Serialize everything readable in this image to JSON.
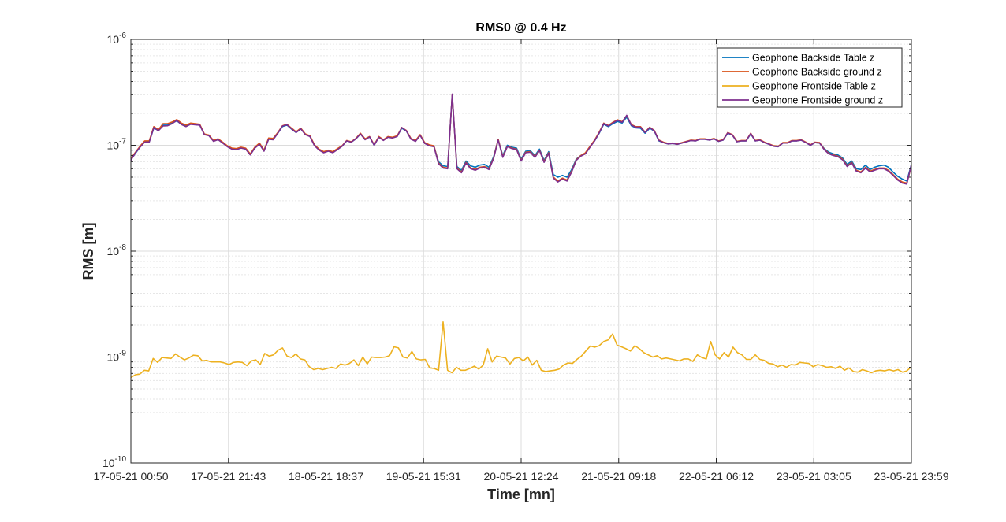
{
  "chart_data": {
    "type": "line",
    "title": "RMS0 @ 0.4 Hz",
    "xlabel": "Time [mn]",
    "ylabel": "RMS [m]",
    "yscale": "log",
    "ylim": [
      1e-10,
      1e-06
    ],
    "y_ticks": [
      {
        "value": 1e-10,
        "base": "10",
        "exp": "-10"
      },
      {
        "value": 1e-09,
        "base": "10",
        "exp": "-9"
      },
      {
        "value": 1e-08,
        "base": "10",
        "exp": "-8"
      },
      {
        "value": 1e-07,
        "base": "10",
        "exp": "-7"
      },
      {
        "value": 1e-06,
        "base": "10",
        "exp": "-6"
      }
    ],
    "x_ticks": [
      "17-05-21 00:50",
      "17-05-21 21:43",
      "18-05-21 18:37",
      "19-05-21 15:31",
      "20-05-21 12:24",
      "21-05-21 09:18",
      "22-05-21 06:12",
      "23-05-21 03:05",
      "23-05-21 23:59"
    ],
    "grid": true,
    "minor_grid": true,
    "legend_position": "top-right",
    "series": [
      {
        "name": "Geophone Backside Table z",
        "color": "#0072BD",
        "values": [
          7.3e-08,
          8.4e-08,
          9.6e-08,
          1.08e-07,
          1.08e-07,
          1.45e-07,
          1.38e-07,
          1.55e-07,
          1.55e-07,
          1.62e-07,
          1.7e-07,
          1.58e-07,
          1.52e-07,
          1.6e-07,
          1.57e-07,
          1.55e-07,
          1.27e-07,
          1.24e-07,
          1.1e-07,
          1.14e-07,
          1.06e-07,
          9.8e-08,
          9.3e-08,
          9.2e-08,
          9.5e-08,
          9.3e-08,
          8.2e-08,
          9.5e-08,
          1.03e-07,
          8.9e-08,
          1.15e-07,
          1.14e-07,
          1.3e-07,
          1.5e-07,
          1.55e-07,
          1.42e-07,
          1.32e-07,
          1.43e-07,
          1.27e-07,
          1.22e-07,
          1e-07,
          9.1e-08,
          8.6e-08,
          8.9e-08,
          8.6e-08,
          9.2e-08,
          9.8e-08,
          1.1e-07,
          1.07e-07,
          1.15e-07,
          1.28e-07,
          1.14e-07,
          1.2e-07,
          1e-07,
          1.2e-07,
          1.12e-07,
          1.2e-07,
          1.18e-07,
          1.22e-07,
          1.45e-07,
          1.36e-07,
          1.15e-07,
          1.1e-07,
          1.25e-07,
          1.05e-07,
          1e-07,
          9.8e-08,
          7e-08,
          6.4e-08,
          6.3e-08,
          2.95e-07,
          6.3e-08,
          5.8e-08,
          7.1e-08,
          6.4e-08,
          6.2e-08,
          6.5e-08,
          6.6e-08,
          6.2e-08,
          7.8e-08,
          1.13e-07,
          8e-08,
          1e-07,
          9.6e-08,
          9.4e-08,
          7.4e-08,
          8.8e-08,
          8.9e-08,
          8e-08,
          9.2e-08,
          7.2e-08,
          8.7e-08,
          5.3e-08,
          5e-08,
          5.2e-08,
          5e-08,
          5.9e-08,
          7.4e-08,
          8e-08,
          8.4e-08,
          9.7e-08,
          1.1e-07,
          1.3e-07,
          1.58e-07,
          1.5e-07,
          1.6e-07,
          1.68e-07,
          1.62e-07,
          1.85e-07,
          1.53e-07,
          1.46e-07,
          1.45e-07,
          1.3e-07,
          1.45e-07,
          1.36e-07,
          1.1e-07,
          1.06e-07,
          1.03e-07,
          1.04e-07,
          1.02e-07,
          1.05e-07,
          1.08e-07,
          1.11e-07,
          1.1e-07,
          1.14e-07,
          1.14e-07,
          1.12e-07,
          1.15e-07,
          1.09e-07,
          1.12e-07,
          1.3e-07,
          1.25e-07,
          1.08e-07,
          1.1e-07,
          1.1e-07,
          1.28e-07,
          1.1e-07,
          1.12e-07,
          1.06e-07,
          1.02e-07,
          9.8e-08,
          9.7e-08,
          1.05e-07,
          1.05e-07,
          1.1e-07,
          1.1e-07,
          1.12e-07,
          1.06e-07,
          1e-07,
          1.06e-07,
          1.05e-07,
          9.3e-08,
          8.6e-08,
          8.3e-08,
          8.1e-08,
          7.6e-08,
          6.6e-08,
          7.1e-08,
          6e-08,
          5.9e-08,
          6.5e-08,
          5.9e-08,
          6.2e-08,
          6.4e-08,
          6.5e-08,
          6.2e-08,
          5.6e-08,
          5.1e-08,
          4.8e-08,
          4.6e-08,
          6.6e-08
        ]
      },
      {
        "name": "Geophone Backside ground z",
        "color": "#D95319",
        "values": [
          7.5e-08,
          8.6e-08,
          9.8e-08,
          1.1e-07,
          1.1e-07,
          1.5e-07,
          1.4e-07,
          1.6e-07,
          1.6e-07,
          1.66e-07,
          1.75e-07,
          1.62e-07,
          1.55e-07,
          1.62e-07,
          1.6e-07,
          1.58e-07,
          1.28e-07,
          1.25e-07,
          1.11e-07,
          1.15e-07,
          1.07e-07,
          9.9e-08,
          9.4e-08,
          9.3e-08,
          9.6e-08,
          9.4e-08,
          8.3e-08,
          9.6e-08,
          1.05e-07,
          9e-08,
          1.17e-07,
          1.16e-07,
          1.32e-07,
          1.53e-07,
          1.58e-07,
          1.45e-07,
          1.34e-07,
          1.45e-07,
          1.28e-07,
          1.23e-07,
          1.01e-07,
          9.2e-08,
          8.7e-08,
          9e-08,
          8.7e-08,
          9.3e-08,
          9.9e-08,
          1.11e-07,
          1.08e-07,
          1.16e-07,
          1.3e-07,
          1.15e-07,
          1.21e-07,
          1.01e-07,
          1.21e-07,
          1.13e-07,
          1.21e-07,
          1.19e-07,
          1.23e-07,
          1.47e-07,
          1.38e-07,
          1.16e-07,
          1.11e-07,
          1.26e-07,
          1.06e-07,
          1.01e-07,
          9.9e-08,
          6.8e-08,
          6.2e-08,
          6.1e-08,
          3e-07,
          6.1e-08,
          5.6e-08,
          6.9e-08,
          6.1e-08,
          5.9e-08,
          6.2e-08,
          6.3e-08,
          6e-08,
          7.6e-08,
          1.14e-07,
          7.8e-08,
          9.8e-08,
          9.4e-08,
          9.2e-08,
          7.2e-08,
          8.6e-08,
          8.7e-08,
          7.8e-08,
          9e-08,
          7e-08,
          8.5e-08,
          5e-08,
          4.6e-08,
          4.9e-08,
          4.7e-08,
          5.7e-08,
          7.3e-08,
          8e-08,
          8.5e-08,
          9.8e-08,
          1.12e-07,
          1.33e-07,
          1.62e-07,
          1.54e-07,
          1.65e-07,
          1.74e-07,
          1.67e-07,
          1.9e-07,
          1.57e-07,
          1.5e-07,
          1.5e-07,
          1.33e-07,
          1.48e-07,
          1.38e-07,
          1.12e-07,
          1.07e-07,
          1.04e-07,
          1.05e-07,
          1.03e-07,
          1.06e-07,
          1.09e-07,
          1.12e-07,
          1.11e-07,
          1.15e-07,
          1.15e-07,
          1.13e-07,
          1.16e-07,
          1.1e-07,
          1.13e-07,
          1.32e-07,
          1.26e-07,
          1.09e-07,
          1.11e-07,
          1.11e-07,
          1.3e-07,
          1.11e-07,
          1.13e-07,
          1.07e-07,
          1.03e-07,
          9.9e-08,
          9.8e-08,
          1.06e-07,
          1.06e-07,
          1.11e-07,
          1.11e-07,
          1.13e-07,
          1.07e-07,
          1.01e-07,
          1.07e-07,
          1.06e-07,
          9.2e-08,
          8.4e-08,
          8.1e-08,
          7.9e-08,
          7.4e-08,
          6.4e-08,
          6.9e-08,
          5.8e-08,
          5.6e-08,
          6.2e-08,
          5.7e-08,
          5.9e-08,
          6.1e-08,
          6.1e-08,
          5.8e-08,
          5.3e-08,
          4.8e-08,
          4.5e-08,
          4.4e-08,
          6.4e-08
        ]
      },
      {
        "name": "Geophone Frontside Table z",
        "color": "#EDB120",
        "values": [
          6.4e-10,
          6.8e-10,
          6.9e-10,
          7.5e-10,
          7.4e-10,
          9.7e-10,
          8.9e-10,
          9.9e-10,
          9.8e-10,
          9.7e-10,
          1.07e-09,
          1e-09,
          9.4e-10,
          9.8e-10,
          1.04e-09,
          1.03e-09,
          9.2e-10,
          9.3e-10,
          9e-10,
          9e-10,
          9e-10,
          8.8e-10,
          8.5e-10,
          8.9e-10,
          9e-10,
          8.9e-10,
          8.3e-10,
          9.2e-10,
          9.4e-10,
          8.5e-10,
          1.08e-09,
          1.02e-09,
          1.05e-09,
          1.16e-09,
          1.22e-09,
          1.02e-09,
          9.9e-10,
          1.07e-09,
          9.6e-10,
          9.4e-10,
          8.1e-10,
          7.6e-10,
          7.8e-10,
          7.6e-10,
          7.8e-10,
          8e-10,
          7.8e-10,
          8.6e-10,
          8.4e-10,
          8.7e-10,
          9.4e-10,
          8.3e-10,
          1e-09,
          8.6e-10,
          1e-09,
          9.9e-10,
          9.9e-10,
          1e-09,
          1.03e-09,
          1.25e-09,
          1.22e-09,
          1e-09,
          9.8e-10,
          1.13e-09,
          9.6e-10,
          9.4e-10,
          9.5e-10,
          7.9e-10,
          7.8e-10,
          7.5e-10,
          2.15e-09,
          7.5e-10,
          7.1e-10,
          8e-10,
          7.5e-10,
          7.5e-10,
          7.8e-10,
          8.2e-10,
          7.7e-10,
          8.4e-10,
          1.2e-09,
          9e-10,
          1.02e-09,
          1e-09,
          9.8e-10,
          8.6e-10,
          9.7e-10,
          9.9e-10,
          9.2e-10,
          1e-09,
          8.4e-10,
          9.3e-10,
          7.5e-10,
          7.3e-10,
          7.4e-10,
          7.5e-10,
          7.7e-10,
          8.4e-10,
          8.8e-10,
          8.7e-10,
          9.5e-10,
          1.02e-09,
          1.14e-09,
          1.27e-09,
          1.24e-09,
          1.28e-09,
          1.4e-09,
          1.45e-09,
          1.65e-09,
          1.3e-09,
          1.25e-09,
          1.2e-09,
          1.14e-09,
          1.28e-09,
          1.2e-09,
          1.1e-09,
          1.05e-09,
          1e-09,
          1.03e-09,
          9.6e-10,
          9.8e-10,
          9.6e-10,
          9.4e-10,
          9.2e-10,
          9.6e-10,
          9.6e-10,
          9.1e-10,
          1.05e-09,
          9.9e-10,
          9.6e-10,
          1.4e-09,
          1.05e-09,
          9.6e-10,
          1.1e-09,
          1e-09,
          1.24e-09,
          1.1e-09,
          1.05e-09,
          9.5e-10,
          9.5e-10,
          1.05e-09,
          9.5e-10,
          9.3e-10,
          8.7e-10,
          8.6e-10,
          8.1e-10,
          8.4e-10,
          8e-10,
          8.5e-10,
          8.4e-10,
          8.9e-10,
          8.8e-10,
          8.7e-10,
          8.1e-10,
          8.5e-10,
          8.3e-10,
          8e-10,
          8.1e-10,
          7.8e-10,
          8.2e-10,
          7.5e-10,
          7.9e-10,
          7.3e-10,
          7.2e-10,
          7.6e-10,
          7.4e-10,
          7.1e-10,
          7.4e-10,
          7.5e-10,
          7.4e-10,
          7.6e-10,
          7.4e-10,
          7.6e-10,
          7.2e-10,
          7.4e-10,
          8.1e-10
        ]
      },
      {
        "name": "Geophone Frontside ground z",
        "color": "#7E2F8E",
        "values": [
          7.2e-08,
          8.5e-08,
          9.6e-08,
          1.07e-07,
          1.07e-07,
          1.47e-07,
          1.37e-07,
          1.52e-07,
          1.53e-07,
          1.6e-07,
          1.72e-07,
          1.57e-07,
          1.5e-07,
          1.58e-07,
          1.56e-07,
          1.55e-07,
          1.26e-07,
          1.23e-07,
          1.09e-07,
          1.13e-07,
          1.05e-07,
          9.7e-08,
          9.2e-08,
          9.1e-08,
          9.4e-08,
          9.2e-08,
          8.1e-08,
          9.4e-08,
          1.02e-07,
          8.8e-08,
          1.14e-07,
          1.13e-07,
          1.3e-07,
          1.52e-07,
          1.56e-07,
          1.43e-07,
          1.32e-07,
          1.43e-07,
          1.26e-07,
          1.21e-07,
          9.9e-08,
          9e-08,
          8.5e-08,
          8.8e-08,
          8.5e-08,
          9.1e-08,
          9.8e-08,
          1.1e-07,
          1.07e-07,
          1.15e-07,
          1.28e-07,
          1.13e-07,
          1.2e-07,
          1e-07,
          1.19e-07,
          1.11e-07,
          1.19e-07,
          1.17e-07,
          1.21e-07,
          1.47e-07,
          1.37e-07,
          1.14e-07,
          1.09e-07,
          1.24e-07,
          1.04e-07,
          9.9e-08,
          9.7e-08,
          6.7e-08,
          6.1e-08,
          6e-08,
          3.05e-07,
          6e-08,
          5.5e-08,
          6.8e-08,
          6e-08,
          5.8e-08,
          6.1e-08,
          6.2e-08,
          5.9e-08,
          7.5e-08,
          1.12e-07,
          7.7e-08,
          9.7e-08,
          9.3e-08,
          9.1e-08,
          7.1e-08,
          8.5e-08,
          8.6e-08,
          7.7e-08,
          8.9e-08,
          6.9e-08,
          8.4e-08,
          4.9e-08,
          4.5e-08,
          4.8e-08,
          4.6e-08,
          5.6e-08,
          7.2e-08,
          7.9e-08,
          8.3e-08,
          9.6e-08,
          1.1e-07,
          1.31e-07,
          1.6e-07,
          1.52e-07,
          1.63e-07,
          1.72e-07,
          1.65e-07,
          1.92e-07,
          1.55e-07,
          1.48e-07,
          1.48e-07,
          1.32e-07,
          1.47e-07,
          1.37e-07,
          1.11e-07,
          1.06e-07,
          1.03e-07,
          1.04e-07,
          1.02e-07,
          1.05e-07,
          1.08e-07,
          1.11e-07,
          1.1e-07,
          1.14e-07,
          1.14e-07,
          1.12e-07,
          1.15e-07,
          1.09e-07,
          1.12e-07,
          1.31e-07,
          1.25e-07,
          1.08e-07,
          1.1e-07,
          1.1e-07,
          1.29e-07,
          1.1e-07,
          1.12e-07,
          1.06e-07,
          1.02e-07,
          9.8e-08,
          9.7e-08,
          1.05e-07,
          1.05e-07,
          1.1e-07,
          1.1e-07,
          1.12e-07,
          1.06e-07,
          1e-07,
          1.06e-07,
          1.05e-07,
          9.1e-08,
          8.3e-08,
          8e-08,
          7.8e-08,
          7.3e-08,
          6.3e-08,
          6.8e-08,
          5.7e-08,
          5.5e-08,
          6.1e-08,
          5.6e-08,
          5.8e-08,
          6e-08,
          6e-08,
          5.7e-08,
          5.2e-08,
          4.7e-08,
          4.4e-08,
          4.3e-08,
          6.6e-08
        ]
      }
    ]
  }
}
